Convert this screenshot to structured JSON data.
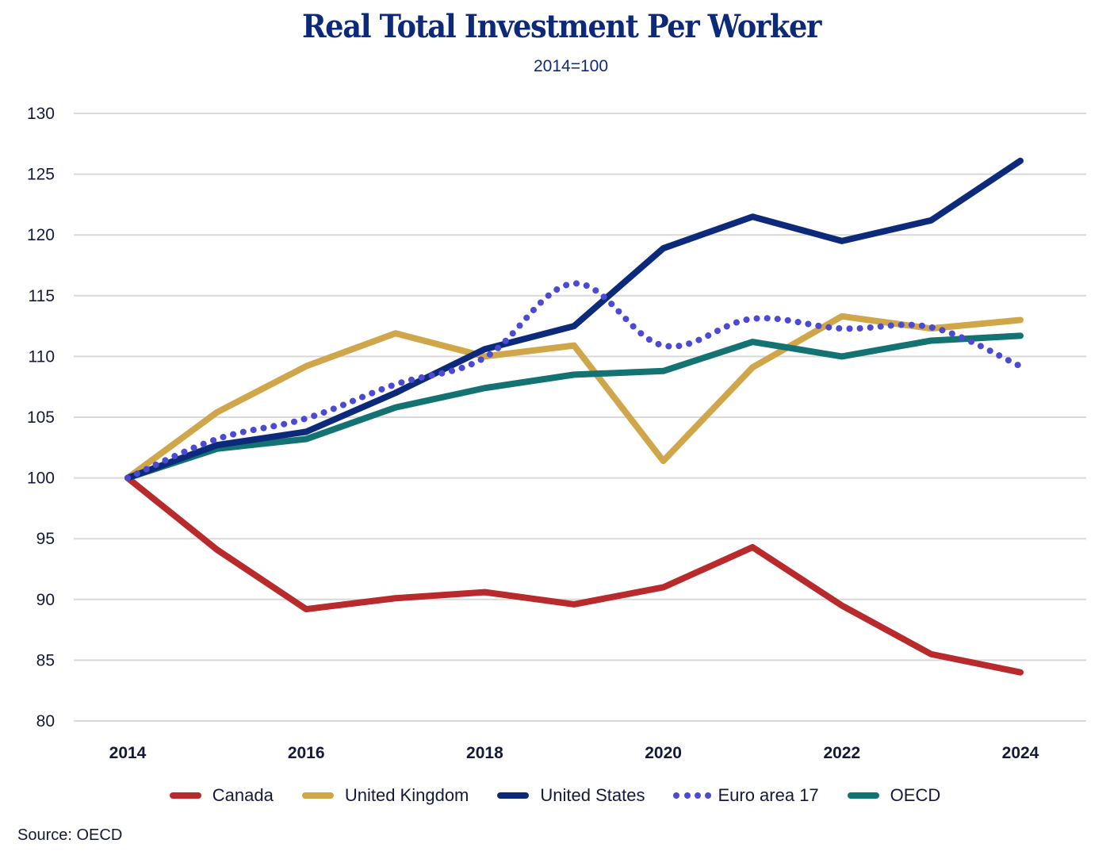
{
  "chart_data": {
    "type": "line",
    "title": "Real Total Investment Per Worker",
    "subtitle": "2014=100",
    "xlabel": "",
    "ylabel": "",
    "x": [
      2014,
      2015,
      2016,
      2017,
      2018,
      2019,
      2020,
      2021,
      2022,
      2023,
      2024
    ],
    "xticks": [
      "2014",
      "2016",
      "2018",
      "2020",
      "2022",
      "2024"
    ],
    "yticks": [
      "80",
      "85",
      "90",
      "95",
      "100",
      "105",
      "110",
      "115",
      "120",
      "125",
      "130"
    ],
    "ylim": [
      80,
      130
    ],
    "grid": true,
    "legend_position": "bottom",
    "series": [
      {
        "name": "Canada",
        "color": "#b82a2c",
        "style": "solid",
        "values": [
          100,
          94.1,
          89.2,
          90.1,
          90.6,
          89.6,
          91.0,
          94.3,
          89.5,
          85.5,
          84.0
        ]
      },
      {
        "name": "United Kingdom",
        "color": "#cfa64a",
        "style": "solid",
        "values": [
          100,
          105.4,
          109.2,
          111.9,
          110.0,
          110.9,
          101.4,
          109.1,
          113.3,
          112.3,
          113.0
        ]
      },
      {
        "name": "United States",
        "color": "#0d2a7a",
        "style": "solid",
        "values": [
          100,
          102.7,
          103.8,
          107.0,
          110.6,
          112.5,
          118.9,
          121.5,
          119.5,
          121.2,
          126.1
        ]
      },
      {
        "name": "Euro area 17",
        "color": "#4c4ad2",
        "style": "dotted",
        "values": [
          100,
          103.2,
          104.9,
          107.7,
          109.9,
          116.0,
          110.9,
          113.1,
          112.3,
          112.4,
          109.2
        ]
      },
      {
        "name": "OECD",
        "color": "#137372",
        "style": "solid",
        "values": [
          100,
          102.4,
          103.2,
          105.8,
          107.4,
          108.5,
          108.8,
          111.2,
          110.0,
          111.3,
          111.7
        ]
      }
    ]
  },
  "source": "Source: OECD",
  "colors": {
    "title": "#0d2a7a",
    "grid": "#d9d9d9",
    "axis_text": "#14193a"
  }
}
